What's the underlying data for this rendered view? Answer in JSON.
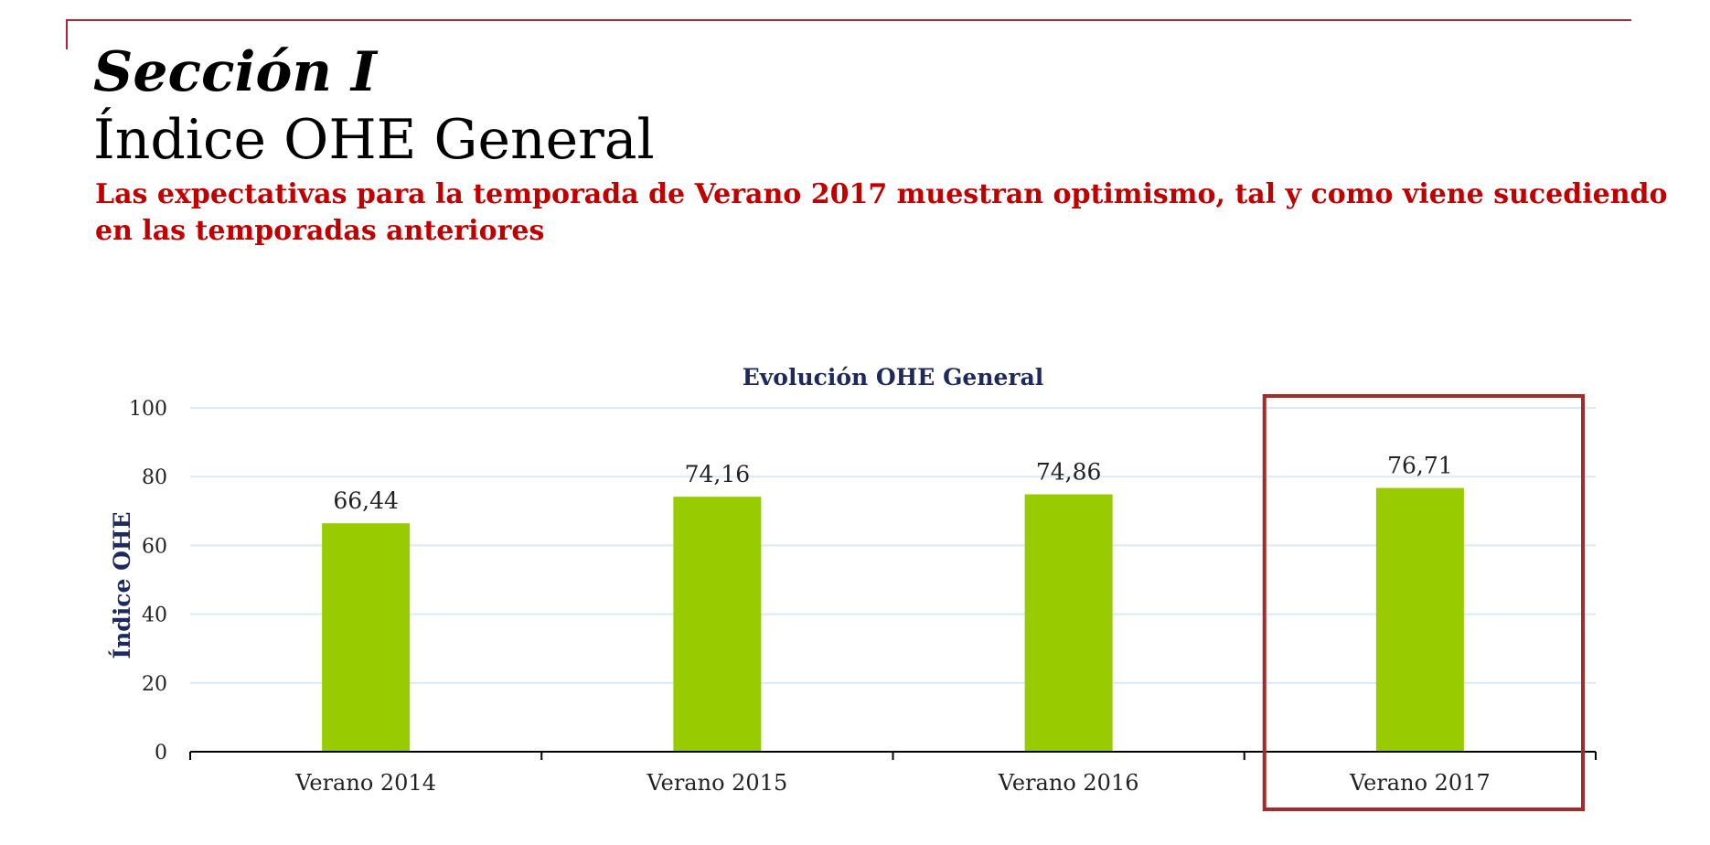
{
  "header": {
    "section_label": "Sección I",
    "title": "Índice OHE General",
    "subtitle": "Las expectativas para la temporada de Verano 2017 muestran optimismo, tal y como viene sucediendo en las temporadas anteriores"
  },
  "colors": {
    "accent": "#c00000",
    "frame": "#b0253a",
    "bar": "#99cc00",
    "highlight_box": "#a52a2a",
    "gridline": "#dbe9f3",
    "chart_text": "#1f2a5c"
  },
  "chart_data": {
    "type": "bar",
    "title": "Evolución OHE General",
    "xlabel": "",
    "ylabel": "Índice OHE",
    "categories": [
      "Verano 2014",
      "Verano 2015",
      "Verano 2016",
      "Verano 2017"
    ],
    "values": [
      66.44,
      74.16,
      74.86,
      76.71
    ],
    "value_labels": [
      "66,44",
      "74,16",
      "74,86",
      "76,71"
    ],
    "ylim": [
      0,
      100
    ],
    "yticks": [
      0,
      20,
      40,
      60,
      80,
      100
    ],
    "grid": true,
    "legend": "none",
    "highlighted_category": "Verano 2017"
  }
}
